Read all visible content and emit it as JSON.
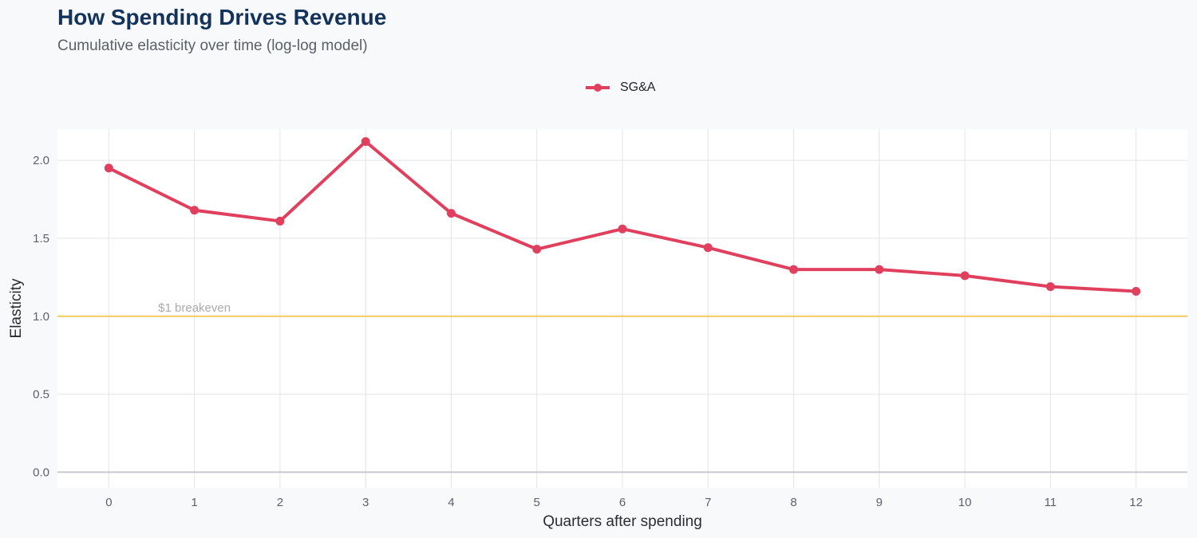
{
  "chart_data": {
    "type": "line",
    "title": "How Spending Drives Revenue",
    "subtitle": "Cumulative elasticity over time (log-log model)",
    "xlabel": "Quarters after spending",
    "ylabel": "Elasticity",
    "x": [
      0,
      1,
      2,
      3,
      4,
      5,
      6,
      7,
      8,
      9,
      10,
      11,
      12
    ],
    "series": [
      {
        "name": "SG&A",
        "color": "#e0405e",
        "values": [
          1.95,
          1.68,
          1.61,
          2.12,
          1.66,
          1.43,
          1.56,
          1.44,
          1.3,
          1.3,
          1.26,
          1.19,
          1.16
        ]
      }
    ],
    "xlim": [
      -0.6,
      12.6
    ],
    "ylim": [
      -0.1,
      2.2
    ],
    "yticks": [
      0.0,
      0.5,
      1.0,
      1.5,
      2.0
    ],
    "ytick_labels": [
      "0.0",
      "0.5",
      "1.0",
      "1.5",
      "2.0"
    ],
    "reference_line": {
      "y": 1.0,
      "label": "$1 breakeven",
      "color": "#f5c95c"
    },
    "legend_position": "top",
    "grid": true
  }
}
